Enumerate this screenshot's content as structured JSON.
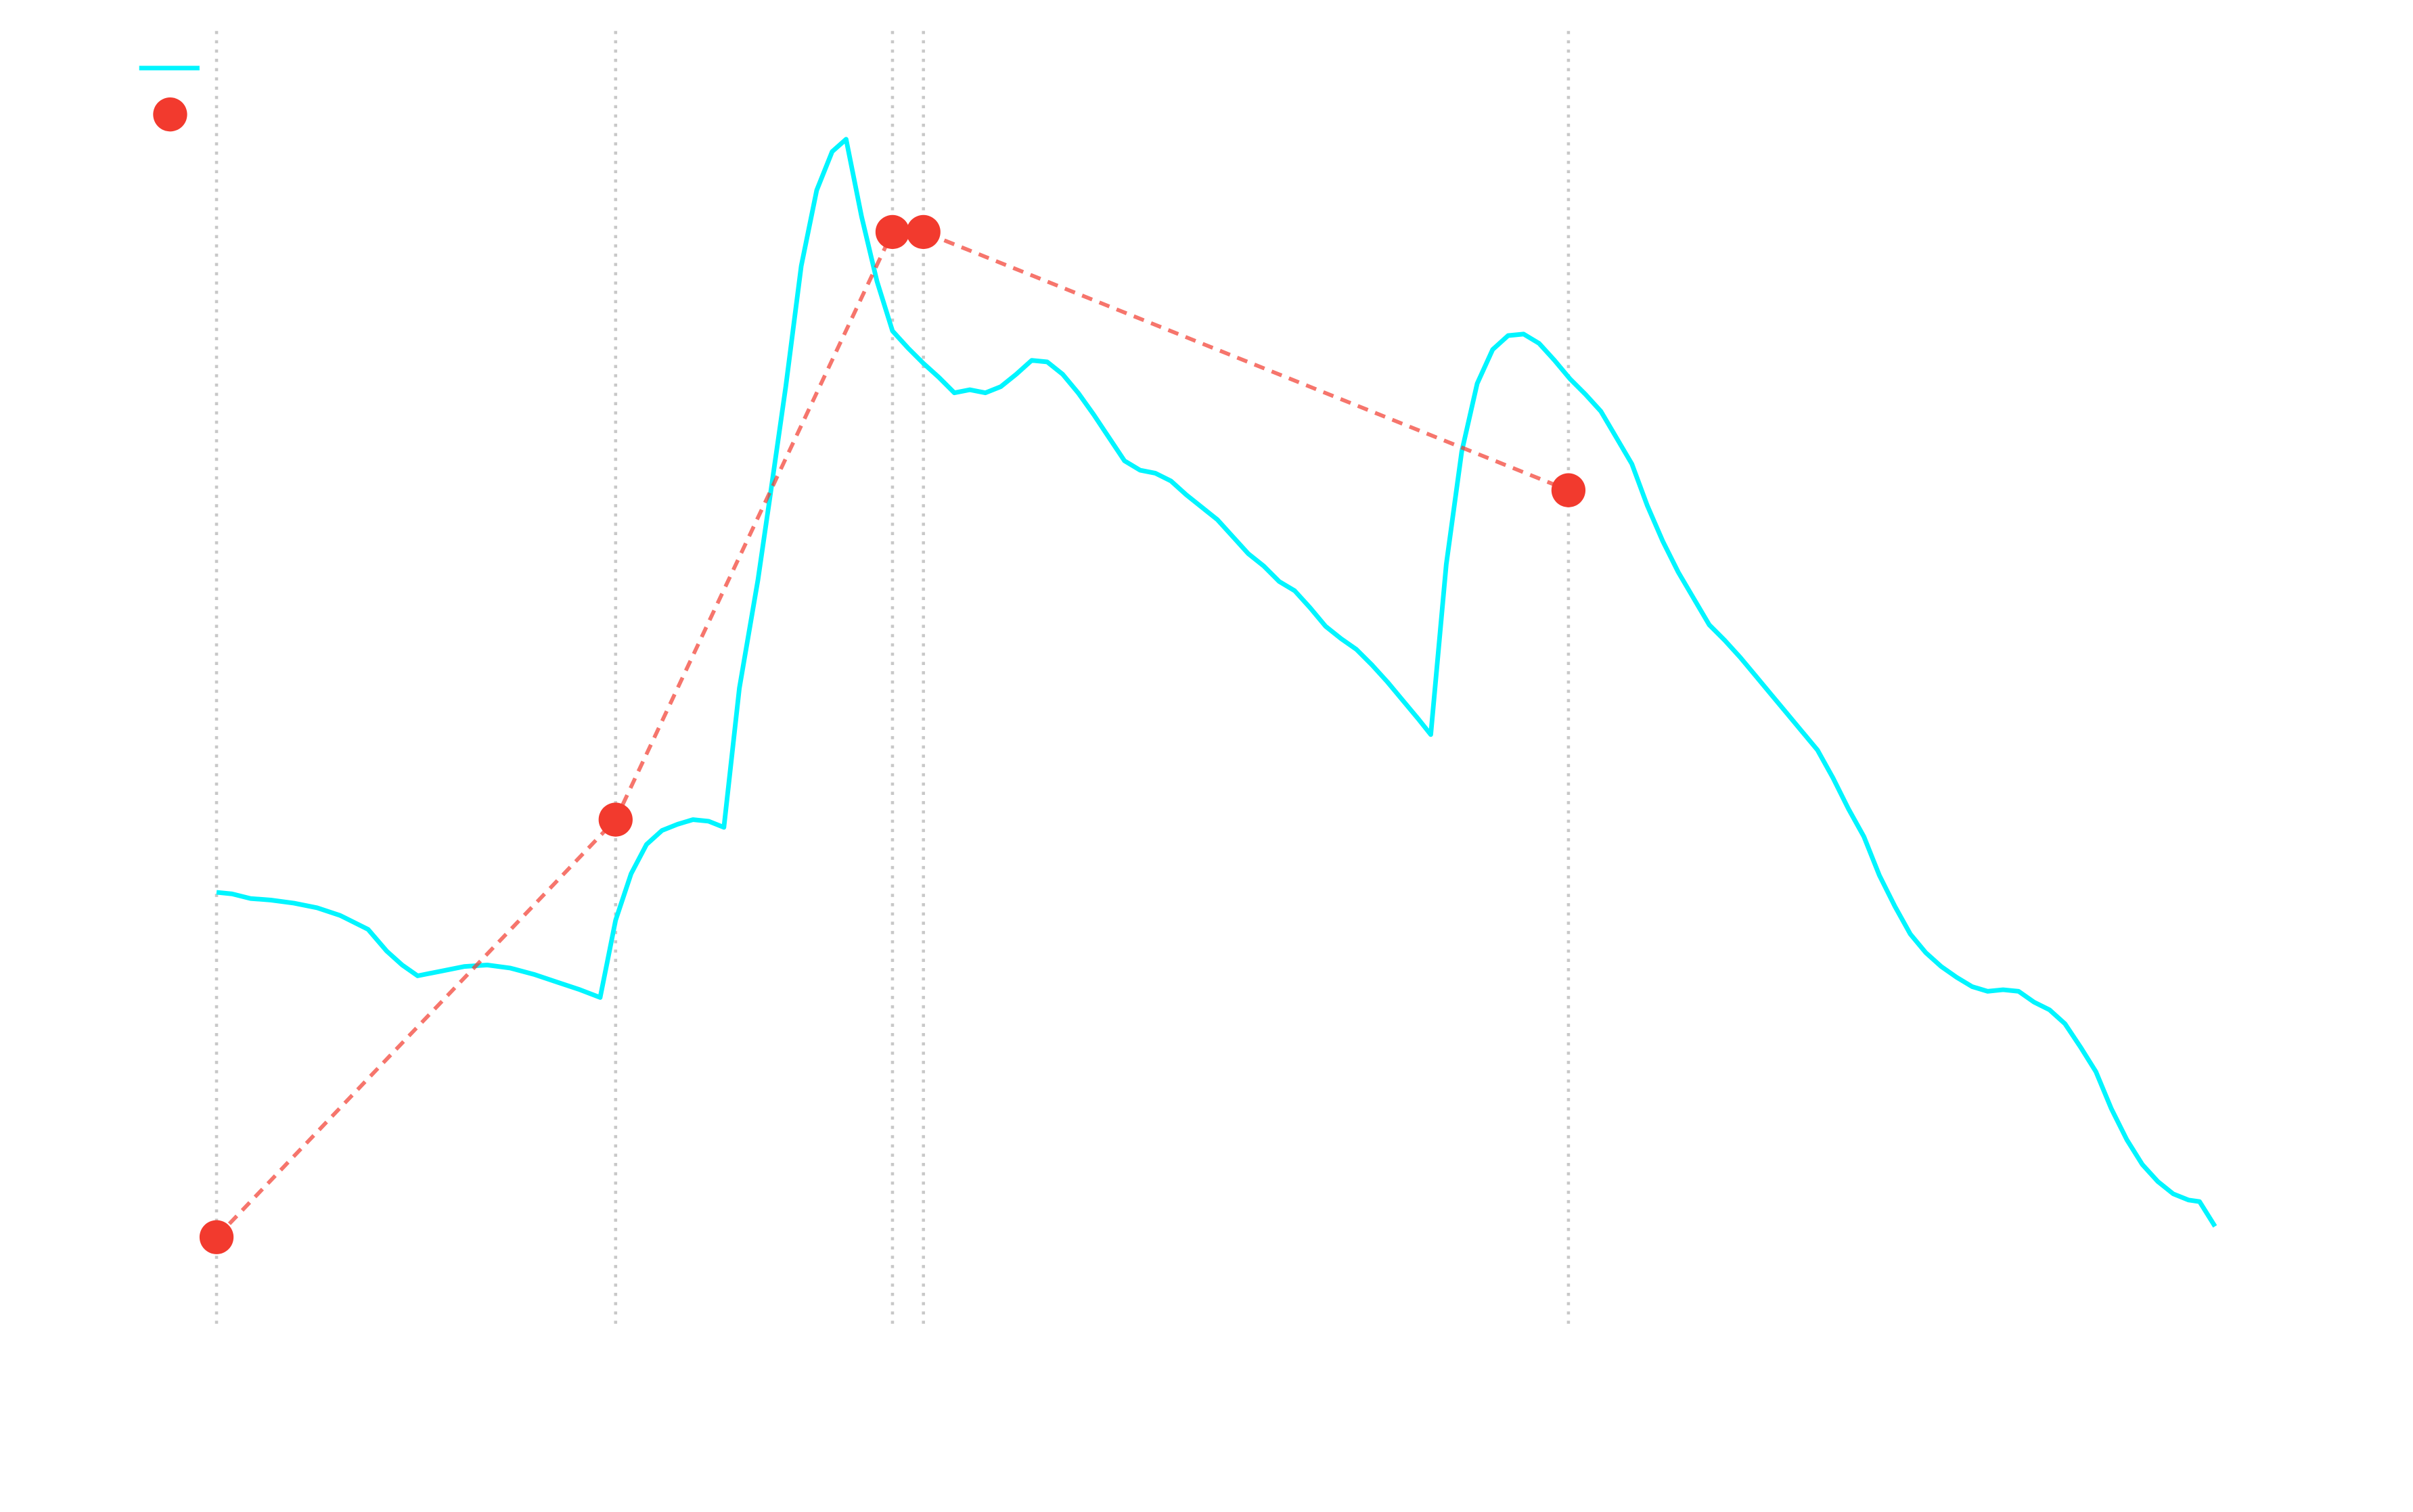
{
  "chart_data": {
    "type": "line",
    "xlim": [
      -50,
      1340
    ],
    "ylim": [
      0,
      840
    ],
    "grid": false,
    "guides": true,
    "legend": "upper left",
    "series": [
      {
        "type": "line",
        "color": "#00f5ff",
        "x": [
          0,
          10,
          22,
          35,
          50,
          65,
          80,
          98,
          110,
          120,
          130,
          145,
          160,
          175,
          190,
          205,
          220,
          235,
          248,
          258,
          268,
          278,
          288,
          298,
          308,
          318,
          328,
          338,
          350,
          358,
          368,
          378,
          388,
          398,
          407,
          417,
          427,
          437,
          447,
          457,
          467,
          477,
          487,
          497,
          507,
          517,
          527,
          537,
          547,
          557,
          567,
          577,
          587,
          597,
          607,
          617,
          627,
          637,
          647,
          657,
          667,
          677,
          687,
          697,
          707,
          717,
          727,
          737,
          747,
          757,
          767,
          777,
          785,
          795,
          805,
          815,
          825,
          835,
          845,
          855,
          865,
          875,
          885,
          895,
          905,
          915,
          925,
          935,
          945,
          955,
          965,
          975,
          985,
          995,
          1005,
          1015,
          1025,
          1035,
          1045,
          1055,
          1065,
          1075,
          1085,
          1095,
          1105,
          1115,
          1125,
          1135,
          1145,
          1155,
          1165,
          1175,
          1185,
          1195,
          1205,
          1215,
          1225,
          1235,
          1245,
          1255,
          1265,
          1275,
          1282,
          1292
        ],
        "values": [
          283,
          282,
          279,
          278,
          276,
          273,
          268,
          259,
          245,
          236,
          229,
          232,
          235,
          236,
          234,
          230,
          225,
          220,
          215,
          265,
          295,
          314,
          323,
          327,
          330,
          329,
          325,
          415,
          485,
          540,
          610,
          688,
          737,
          762,
          770,
          720,
          678,
          646,
          635,
          625,
          616,
          606,
          608,
          606,
          610,
          618,
          627,
          626,
          618,
          606,
          592,
          577,
          562,
          556,
          554,
          549,
          540,
          532,
          524,
          513,
          502,
          494,
          484,
          478,
          467,
          455,
          447,
          440,
          430,
          419,
          407,
          395,
          385,
          495,
          568,
          612,
          634,
          643,
          644,
          638,
          627,
          615,
          605,
          594,
          577,
          560,
          533,
          510,
          490,
          473,
          456,
          446,
          435,
          423,
          411,
          399,
          387,
          375,
          357,
          337,
          319,
          294,
          274,
          256,
          244,
          235,
          228,
          222,
          219,
          220,
          219,
          212,
          207,
          198,
          183,
          167,
          143,
          123,
          107,
          96,
          88,
          84,
          83,
          67
        ]
      },
      {
        "type": "scatter",
        "color": "#f23a2e",
        "line_style": "dashed",
        "x": [
          0,
          258,
          437,
          457,
          874
        ],
        "values": [
          60,
          330,
          710,
          710,
          543
        ]
      }
    ]
  }
}
